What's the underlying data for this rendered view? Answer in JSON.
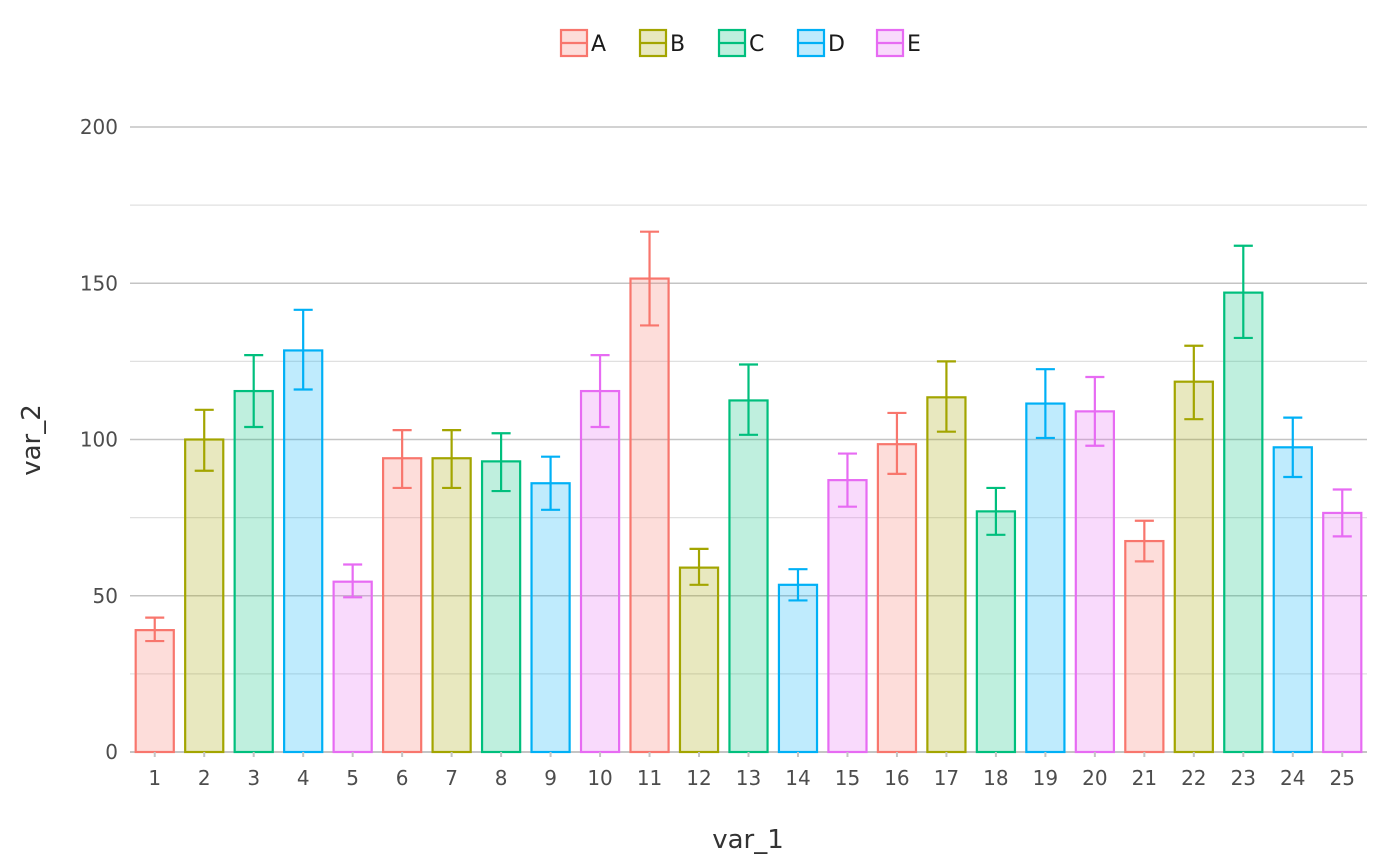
{
  "chart_data": {
    "type": "bar",
    "title": "",
    "xlabel": "var_1",
    "ylabel": "var_2",
    "ylim": [
      0,
      200
    ],
    "y_ticks": [
      0,
      50,
      100,
      150,
      200
    ],
    "grid": true,
    "legend_position": "top",
    "legend": [
      {
        "label": "A",
        "color": "#F8766D"
      },
      {
        "label": "B",
        "color": "#A3A500"
      },
      {
        "label": "C",
        "color": "#00BF7D"
      },
      {
        "label": "D",
        "color": "#00B0F6"
      },
      {
        "label": "E",
        "color": "#E76BF3"
      }
    ],
    "categories": [
      "1",
      "2",
      "3",
      "4",
      "5",
      "6",
      "7",
      "8",
      "9",
      "10",
      "11",
      "12",
      "13",
      "14",
      "15",
      "16",
      "17",
      "18",
      "19",
      "20",
      "21",
      "22",
      "23",
      "24",
      "25"
    ],
    "groups": [
      "A",
      "B",
      "C",
      "D",
      "E",
      "A",
      "B",
      "C",
      "D",
      "E",
      "A",
      "B",
      "C",
      "D",
      "E",
      "A",
      "B",
      "C",
      "D",
      "E",
      "A",
      "B",
      "C",
      "D",
      "E"
    ],
    "values": [
      39,
      100,
      115.5,
      128.5,
      54.5,
      94,
      94,
      93,
      86,
      115.5,
      151.5,
      59,
      112.5,
      53.5,
      87,
      98.5,
      113.5,
      77,
      111.5,
      109,
      67.5,
      118.5,
      147,
      97.5,
      76.5
    ],
    "error_low": [
      35.5,
      90,
      104,
      116,
      49.5,
      84.5,
      84.5,
      83.5,
      77.5,
      104,
      136.5,
      53.5,
      101.5,
      48.5,
      78.5,
      89,
      102.5,
      69.5,
      100.5,
      98,
      61,
      106.5,
      132.5,
      88,
      69
    ],
    "error_high": [
      43,
      109.5,
      127,
      141.5,
      60,
      103,
      103,
      102,
      94.5,
      127,
      166.5,
      65,
      124,
      58.5,
      95.5,
      108.5,
      125,
      84.5,
      122.5,
      120,
      74,
      130,
      162,
      107,
      84
    ]
  }
}
